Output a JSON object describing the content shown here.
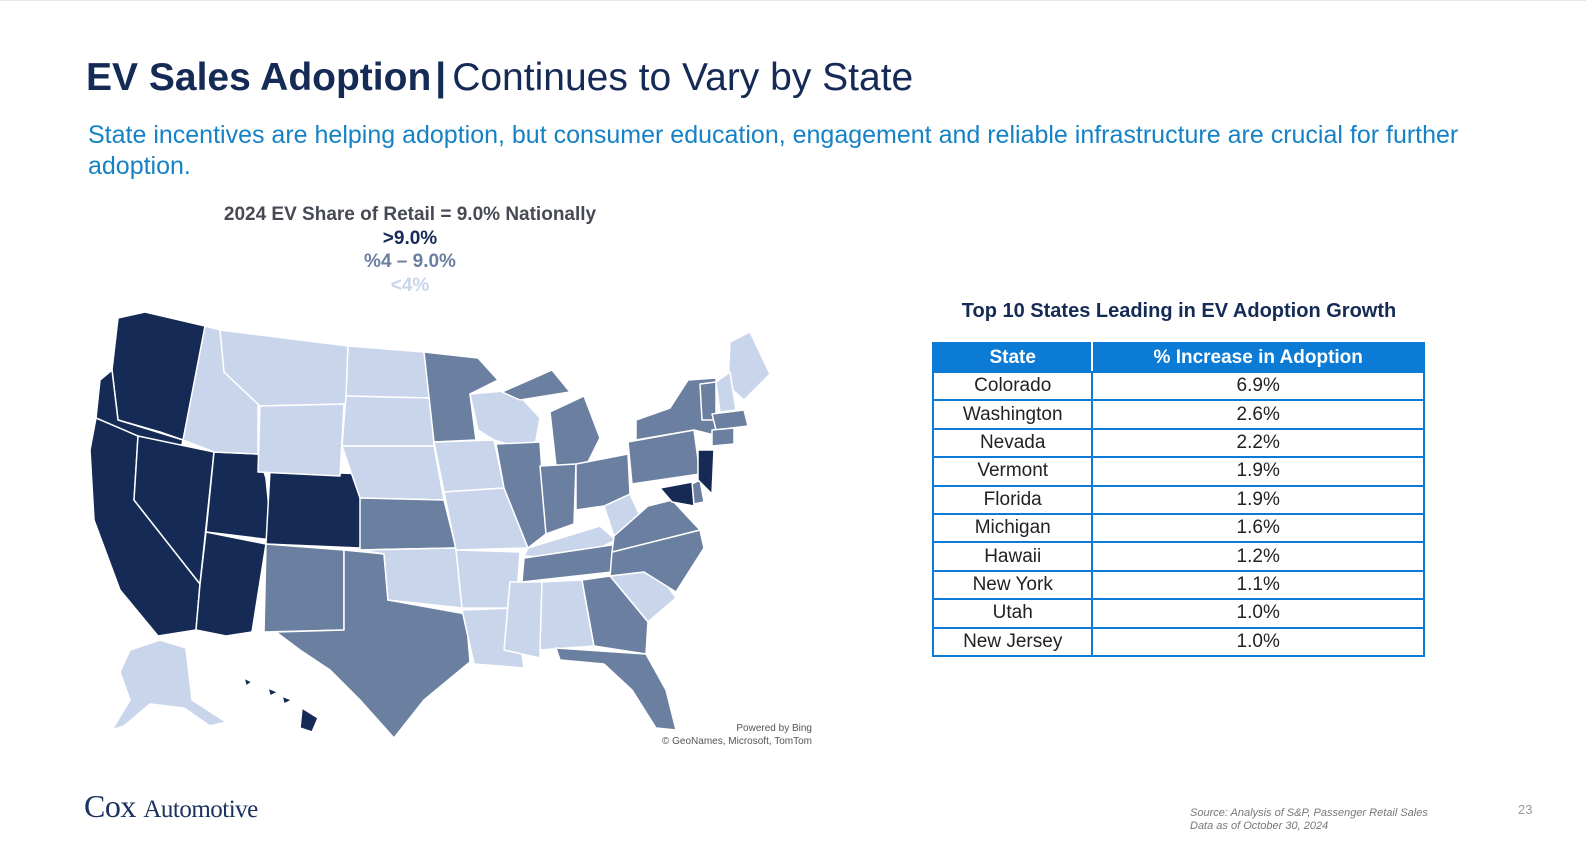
{
  "slide": {
    "title_bold": "EV Sales Adoption",
    "title_sep": "|",
    "title_rest": "Continues to Vary by State",
    "subtitle": "State incentives are helping adoption, but consumer education, engagement and reliable infrastructure are crucial for further adoption.",
    "page_number": "23",
    "source_line1": "Source: Analysis of S&P, Passenger Retail Sales",
    "source_line2": "Data as of October 30, 2024"
  },
  "logo": {
    "cox": "Cox",
    "automotive": "Automotive"
  },
  "map": {
    "legend_title": "2024 EV Share of Retail = 9.0% Nationally",
    "legend": [
      {
        "label": ">9.0%",
        "tier": "high",
        "color": "#152a55"
      },
      {
        "label": "%4 – 9.0%",
        "tier": "mid",
        "color": "#6b7fa0"
      },
      {
        "label": "<4%",
        "tier": "low",
        "color": "#c8d5ea"
      }
    ],
    "credit_line1": "Powered by Bing",
    "credit_line2": "© GeoNames, Microsoft, TomTom",
    "colors": {
      "high": "#152a55",
      "mid": "#6b7fa0",
      "low": "#c8d5ea",
      "border": "#ffffff"
    }
  },
  "table": {
    "title": "Top 10 States Leading in EV Adoption Growth",
    "header_state": "State",
    "header_increase": "% Increase in Adoption",
    "header_color": "#0c7bd6",
    "rows": [
      {
        "state": "Colorado",
        "increase": "6.9%"
      },
      {
        "state": "Washington",
        "increase": "2.6%"
      },
      {
        "state": "Nevada",
        "increase": "2.2%"
      },
      {
        "state": "Vermont",
        "increase": "1.9%"
      },
      {
        "state": "Florida",
        "increase": "1.9%"
      },
      {
        "state": "Michigan",
        "increase": "1.6%"
      },
      {
        "state": "Hawaii",
        "increase": "1.2%"
      },
      {
        "state": "New York",
        "increase": "1.1%"
      },
      {
        "state": "Utah",
        "increase": "1.0%"
      },
      {
        "state": "New Jersey",
        "increase": "1.0%"
      }
    ]
  }
}
